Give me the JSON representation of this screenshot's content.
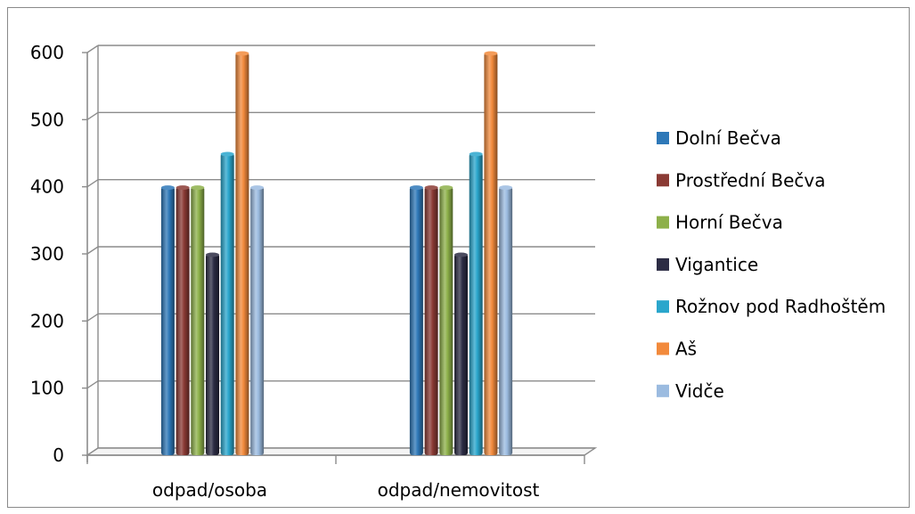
{
  "chart_data": {
    "type": "bar",
    "title": "",
    "xlabel": "",
    "ylabel": "",
    "ylim": [
      0,
      600
    ],
    "yticks": [
      0,
      100,
      200,
      300,
      400,
      500,
      600
    ],
    "grid": true,
    "legend_position": "right",
    "categories": [
      "odpad/osoba",
      "odpad/nemovitost"
    ],
    "series": [
      {
        "name": "Dolní Bečva",
        "color": "#2e78b8",
        "values": [
          400,
          400
        ]
      },
      {
        "name": "Prostřední Bečva",
        "color": "#8a3a34",
        "values": [
          400,
          400
        ]
      },
      {
        "name": "Horní Bečva",
        "color": "#8db04a",
        "values": [
          400,
          400
        ]
      },
      {
        "name": "Vigantice",
        "color": "#2c2c44",
        "values": [
          300,
          300
        ]
      },
      {
        "name": "Rožnov pod Radhoštěm",
        "color": "#2aa6cc",
        "values": [
          450,
          450
        ]
      },
      {
        "name": "Aš",
        "color": "#f28a3c",
        "values": [
          600,
          600
        ]
      },
      {
        "name": "Vidče",
        "color": "#9bbbe0",
        "values": [
          400,
          400
        ]
      }
    ]
  }
}
